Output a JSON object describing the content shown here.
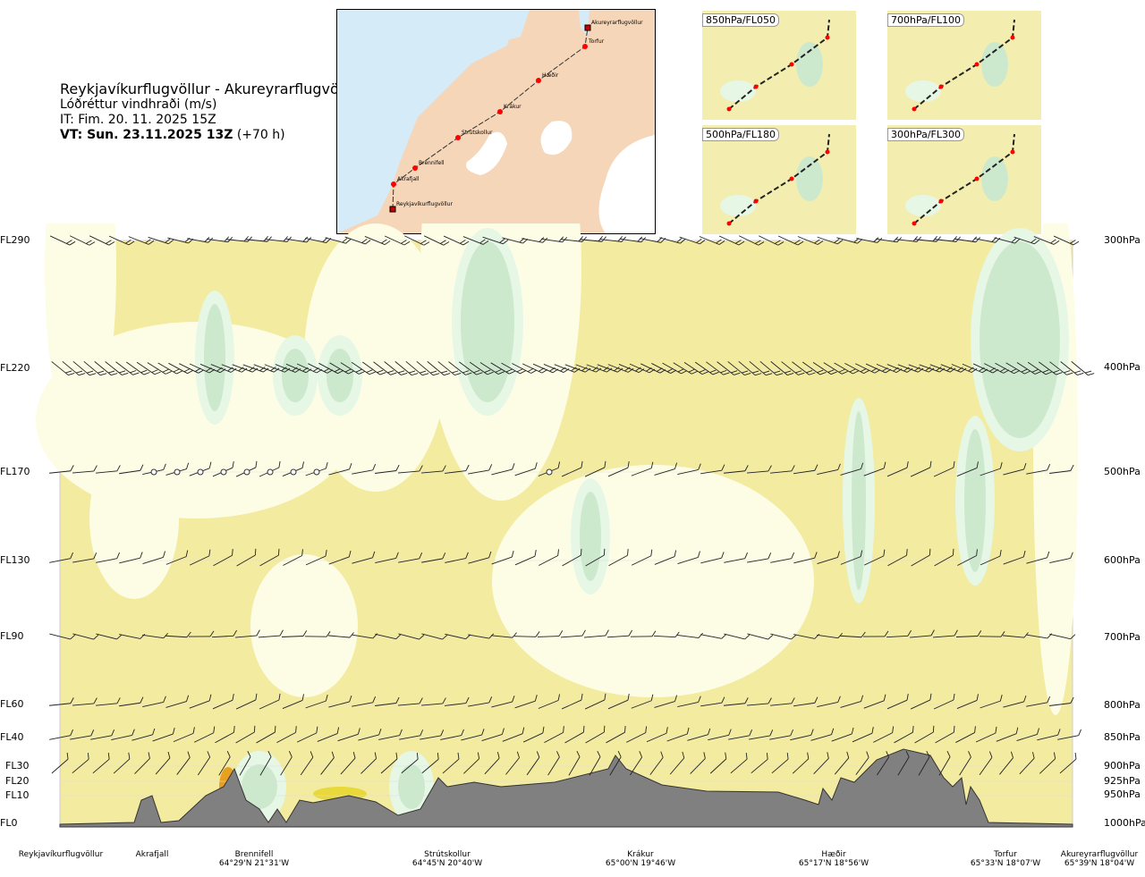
{
  "header": {
    "title": "Reykjavíkurflugvöllur - Akureyrarflugvöllur",
    "parameter": "Lóðréttur vindhraði (m/s)",
    "it": "IT: Fim. 20. 11. 2025 15Z",
    "vt_bold": "VT: Sun. 23.11.2025 13Z",
    "vt_offset": " (+70 h)"
  },
  "map": {
    "points": [
      "Akureyrarflugvöllur",
      "Torfur",
      "Hæðir",
      "Krákur",
      "Strútskollur",
      "Brennifell",
      "Akrafjall",
      "Reykjavíkurflugvöllur"
    ]
  },
  "thumbnails": [
    {
      "label": "850hPa/FL050"
    },
    {
      "label": "700hPa/FL100"
    },
    {
      "label": "500hPa/FL180"
    },
    {
      "label": "300hPa/FL300"
    }
  ],
  "levels_left": [
    "FL290",
    "FL220",
    "FL170",
    "FL130",
    "FL90",
    "FL60",
    "FL40",
    "FL30",
    "FL20",
    "FL10",
    "FL0"
  ],
  "levels_right": [
    "300hPa",
    "400hPa",
    "500hPa",
    "600hPa",
    "700hPa",
    "800hPa",
    "850hPa",
    "900hPa",
    "925hPa",
    "950hPa",
    "1000hPa"
  ],
  "locations": [
    {
      "name": "Reykjavíkurflugvöllur",
      "coord": ""
    },
    {
      "name": "Akrafjall",
      "coord": ""
    },
    {
      "name": "Brennifell",
      "coord": "64°29'N 21°31'W"
    },
    {
      "name": "Strútskollur",
      "coord": "64°45'N 20°40'W"
    },
    {
      "name": "Krákur",
      "coord": "65°00'N 19°46'W"
    },
    {
      "name": "Hæðir",
      "coord": "65°17'N 18°56'W"
    },
    {
      "name": "Torfur",
      "coord": "65°33'N 18°07'W"
    },
    {
      "name": "Akureyrarflugvöllur",
      "coord": "65°39'N 18°04'W"
    }
  ],
  "colors": {
    "weak": "#f3eba0",
    "calm": "#fdfde6",
    "light_green": "#e6f7e6",
    "green": "#cde9cd",
    "terrain": "#808080",
    "orange": "#e9a020"
  }
}
